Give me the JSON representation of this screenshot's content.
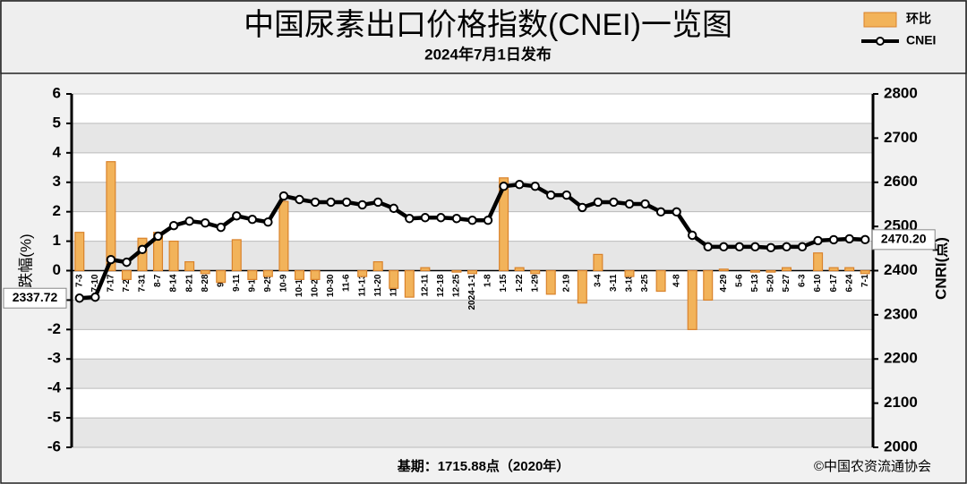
{
  "chart_data": {
    "type": "bar-line",
    "title": "中国尿素出口价格指数(CNEI)一览图",
    "subtitle": "2024年7月1日发布",
    "ylabel": "涨跌幅(%)",
    "y2label": "CNRI(点)",
    "footer_left": "基期：1715.88点（2020年）",
    "footer_right": "©中国农资流通协会",
    "categories": [
      "7-3",
      "7-10",
      "7-17",
      "7-24",
      "7-31",
      "8-7",
      "8-14",
      "8-21",
      "8-28",
      "9-4",
      "9-11",
      "9-18",
      "9-25",
      "10-9",
      "10-16",
      "10-23",
      "10-30",
      "11-6",
      "11-13",
      "11-20",
      "11-27",
      "12-4",
      "12-11",
      "12-18",
      "12-25",
      "2024-1-1",
      "1-8",
      "1-15",
      "1-22",
      "1-29",
      "2-5",
      "2-19",
      "2-26",
      "3-4",
      "3-11",
      "3-18",
      "3-25",
      "4-1",
      "4-8",
      "4-15",
      "4-22",
      "4-29",
      "5-6",
      "5-13",
      "5-20",
      "5-27",
      "6-3",
      "6-10",
      "6-17",
      "6-24",
      "7-1"
    ],
    "series": [
      {
        "name": "环比",
        "type": "bar",
        "axis": "y",
        "color": "#f2b35a",
        "values": [
          1.3,
          0,
          3.7,
          -0.3,
          1.1,
          1.3,
          1.0,
          0.3,
          -0.1,
          -0.4,
          1.05,
          -0.3,
          -0.2,
          2.35,
          -0.3,
          -0.3,
          0,
          0,
          -0.2,
          0.3,
          -0.6,
          -0.9,
          0.1,
          0,
          -0.05,
          -0.1,
          0,
          3.15,
          0.1,
          -0.1,
          -0.8,
          0,
          -1.1,
          0.55,
          0,
          -0.2,
          0,
          -0.7,
          0,
          -2.0,
          -1.0,
          0.05,
          0,
          -0.05,
          -0.05,
          0.1,
          0,
          0.6,
          0.1,
          0.1,
          -0.1
        ]
      },
      {
        "name": "CNEI",
        "type": "line",
        "axis": "y2",
        "color": "#000000",
        "values": [
          2337.72,
          2340,
          2425,
          2419,
          2448,
          2478,
          2502,
          2512,
          2508,
          2498,
          2524,
          2516,
          2510,
          2569,
          2561,
          2555,
          2555,
          2555,
          2549,
          2555,
          2541,
          2518,
          2520,
          2520,
          2518,
          2514,
          2514,
          2591,
          2595,
          2591,
          2571,
          2571,
          2543,
          2555,
          2555,
          2551,
          2551,
          2533,
          2533,
          2480,
          2454,
          2454,
          2454,
          2454,
          2452,
          2454,
          2454,
          2468,
          2470,
          2472,
          2470.2
        ],
        "value_labels": [
          "2337.72",
          null,
          null,
          null,
          null,
          null,
          null,
          null,
          null,
          null,
          null,
          null,
          null,
          null,
          null,
          null,
          null,
          null,
          null,
          null,
          null,
          null,
          null,
          null,
          null,
          null,
          null,
          null,
          null,
          null,
          null,
          null,
          null,
          null,
          null,
          null,
          null,
          null,
          null,
          null,
          null,
          null,
          null,
          null,
          null,
          null,
          null,
          null,
          null,
          null,
          "2470.20"
        ]
      }
    ],
    "ylim": [
      -6,
      6
    ],
    "yticks": [
      -6,
      -5,
      -4,
      -3,
      -2,
      -1,
      0,
      1,
      2,
      3,
      4,
      5,
      6
    ],
    "y2lim": [
      2000,
      2800
    ],
    "y2ticks": [
      2000,
      2100,
      2200,
      2300,
      2400,
      2500,
      2600,
      2700,
      2800
    ],
    "grid": true
  }
}
